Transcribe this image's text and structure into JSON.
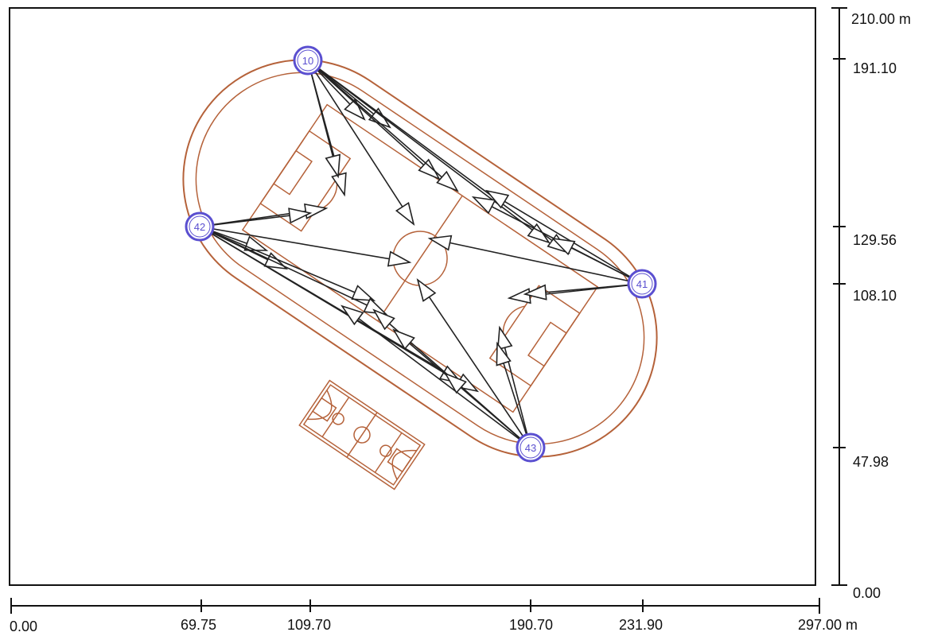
{
  "drawing": {
    "x_axis": {
      "ticks": [
        "0.00",
        "69.75",
        "109.70",
        "190.70",
        "231.90",
        "297.00 m"
      ]
    },
    "y_axis": {
      "ticks": [
        "210.00 m",
        "191.10",
        "129.56",
        "108.10",
        "47.98",
        "0.00"
      ]
    },
    "poles": [
      {
        "id": "10"
      },
      {
        "id": "41"
      },
      {
        "id": "42"
      },
      {
        "id": "43"
      }
    ],
    "colors": {
      "outline": "#111111",
      "field": "#b5623a",
      "pole": "#5a4fd0",
      "beam": "#222222"
    }
  }
}
